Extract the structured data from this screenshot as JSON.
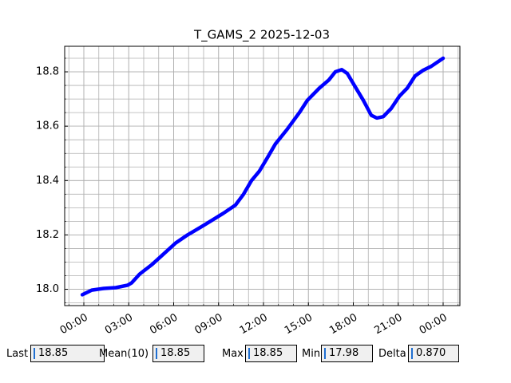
{
  "chart_data": {
    "type": "line",
    "title": "T_GAMS_2 2025-12-03",
    "x": [
      -0.1,
      0.53,
      1.33,
      2.13,
      2.93,
      3.2,
      3.73,
      4.53,
      5.33,
      6.13,
      6.93,
      7.73,
      8.53,
      9.33,
      10.13,
      10.67,
      11.2,
      11.73,
      12.27,
      12.8,
      13.6,
      14.4,
      14.93,
      15.73,
      16.37,
      16.8,
      17.23,
      17.6,
      18.13,
      18.67,
      19.2,
      19.57,
      20.0,
      20.53,
      21.07,
      21.6,
      22.13,
      22.67,
      23.2,
      24.0
    ],
    "series": [
      {
        "color": "#0000ff",
        "values": [
          17.98,
          17.997,
          18.003,
          18.006,
          18.015,
          18.024,
          18.056,
          18.09,
          18.13,
          18.17,
          18.2,
          18.226,
          18.253,
          18.28,
          18.31,
          18.35,
          18.4,
          18.435,
          18.485,
          18.535,
          18.59,
          18.65,
          18.695,
          18.74,
          18.77,
          18.8,
          18.808,
          18.794,
          18.745,
          18.695,
          18.64,
          18.63,
          18.635,
          18.665,
          18.71,
          18.74,
          18.785,
          18.806,
          18.82,
          18.85
        ]
      }
    ],
    "xlim": [
      -1.28,
      25.12
    ],
    "xticks": [
      {
        "value": 0,
        "label": "00:00"
      },
      {
        "value": 3,
        "label": "03:00"
      },
      {
        "value": 6,
        "label": "06:00"
      },
      {
        "value": 9,
        "label": "09:00"
      },
      {
        "value": 12,
        "label": "12:00"
      },
      {
        "value": 15,
        "label": "15:00"
      },
      {
        "value": 18,
        "label": "18:00"
      },
      {
        "value": 21,
        "label": "21:00"
      },
      {
        "value": 24,
        "label": "00:00"
      }
    ],
    "ylim": [
      17.94,
      18.894
    ],
    "yticks": [
      {
        "value": 18.0,
        "label": "18.0"
      },
      {
        "value": 18.2,
        "label": "18.2"
      },
      {
        "value": 18.4,
        "label": "18.4"
      },
      {
        "value": 18.6,
        "label": "18.6"
      },
      {
        "value": 18.8,
        "label": "18.8"
      }
    ],
    "grid": true
  },
  "stats": [
    {
      "label": "Last",
      "value": "18.85"
    },
    {
      "label": "Mean(10)",
      "value": "18.85"
    },
    {
      "label": "Max",
      "value": "18.85"
    },
    {
      "label": "Min",
      "value": "17.98"
    },
    {
      "label": "Delta",
      "value": "0.870"
    }
  ]
}
